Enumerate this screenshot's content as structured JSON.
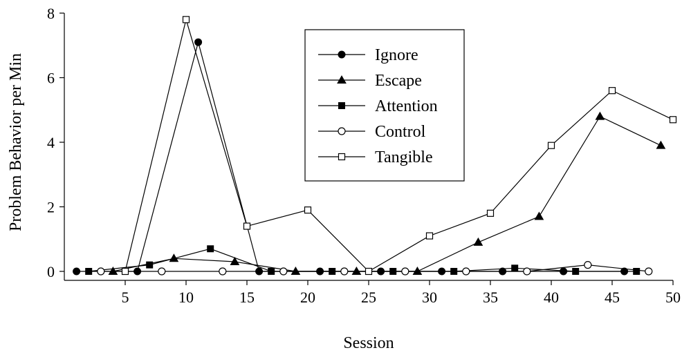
{
  "chart_data": {
    "type": "line",
    "title": "",
    "xlabel": "Session",
    "ylabel": "Problem Behavior per Min",
    "xlim": [
      0,
      50
    ],
    "ylim": [
      0,
      8
    ],
    "xticks": [
      5,
      10,
      15,
      20,
      25,
      30,
      35,
      40,
      45,
      50
    ],
    "yticks": [
      0,
      2,
      4,
      6,
      8
    ],
    "grid": false,
    "legend_position": "top-center",
    "series": [
      {
        "name": "Ignore",
        "marker": "filled-circle",
        "x": [
          1,
          6,
          11,
          16,
          21,
          26,
          31,
          36,
          41,
          46
        ],
        "y": [
          0,
          0,
          7.1,
          0,
          0,
          0,
          0,
          0,
          0,
          0
        ]
      },
      {
        "name": "Escape",
        "marker": "filled-triangle",
        "x": [
          4,
          9,
          14,
          19,
          24,
          29,
          34,
          39,
          44,
          49
        ],
        "y": [
          0,
          0.4,
          0.3,
          0,
          0,
          0,
          0.9,
          1.7,
          4.8,
          3.9
        ]
      },
      {
        "name": "Attention",
        "marker": "filled-square",
        "x": [
          2,
          7,
          12,
          17,
          22,
          27,
          32,
          37,
          42,
          47
        ],
        "y": [
          0,
          0.2,
          0.7,
          0,
          0,
          0,
          0,
          0.1,
          0,
          0
        ]
      },
      {
        "name": "Control",
        "marker": "open-circle",
        "x": [
          3,
          8,
          13,
          18,
          23,
          28,
          33,
          38,
          43,
          48
        ],
        "y": [
          0,
          0,
          0,
          0,
          0,
          0,
          0,
          0,
          0.2,
          0
        ]
      },
      {
        "name": "Tangible",
        "marker": "open-square",
        "x": [
          5,
          10,
          15,
          20,
          25,
          30,
          35,
          40,
          45,
          50
        ],
        "y": [
          0,
          7.8,
          1.4,
          1.9,
          0,
          1.1,
          1.8,
          3.9,
          5.6,
          4.7
        ]
      }
    ],
    "colors": {
      "line": "#000000",
      "open_fill": "#ffffff"
    }
  }
}
